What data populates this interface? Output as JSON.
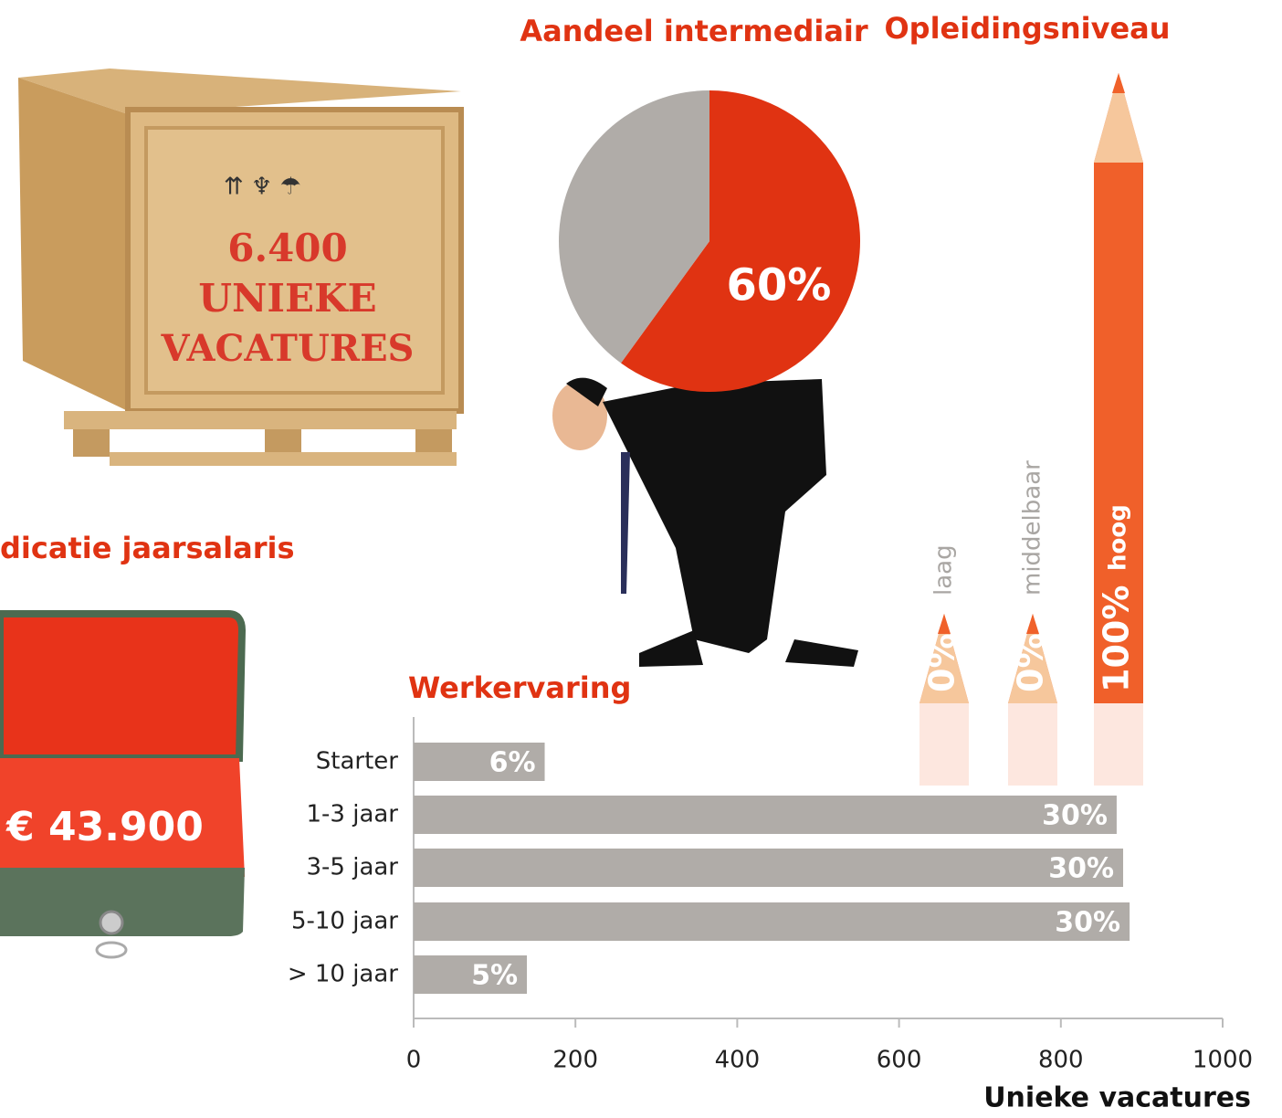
{
  "chart_data": [
    {
      "type": "pie",
      "title": "Aandeel intermediair",
      "values": [
        60,
        40
      ],
      "value_labels": [
        "60%",
        null
      ],
      "colors": [
        "#e03312",
        "#b0aca8"
      ]
    },
    {
      "type": "pencil",
      "title": "Opleidingsniveau",
      "categories": [
        "laag",
        "middelbaar",
        "hoog"
      ],
      "values": [
        0,
        0,
        100
      ],
      "value_labels": [
        "0%",
        "0%",
        "100%"
      ],
      "color": "#f0612a"
    },
    {
      "type": "hbar",
      "title": "Werkervaring",
      "categories": [
        "Starter",
        "1-3 jaar",
        "3-5 jaar",
        "5-10 jaar",
        "> 10 jaar"
      ],
      "values": [
        162,
        869,
        877,
        885,
        140
      ],
      "share_labels": [
        "6%",
        "30%",
        "30%",
        "30%",
        "5%"
      ],
      "color": "#b0aca8",
      "xlim": [
        0,
        1000
      ],
      "xticks": [
        0,
        200,
        400,
        600,
        800,
        1000
      ],
      "xlabel": "Unieke vacatures"
    }
  ],
  "crate": {
    "lines": [
      "6.400",
      "UNIEKE",
      "VACATURES"
    ]
  },
  "salary": {
    "title": "dicatie jaarsalaris",
    "amount": "€ 43.900"
  }
}
